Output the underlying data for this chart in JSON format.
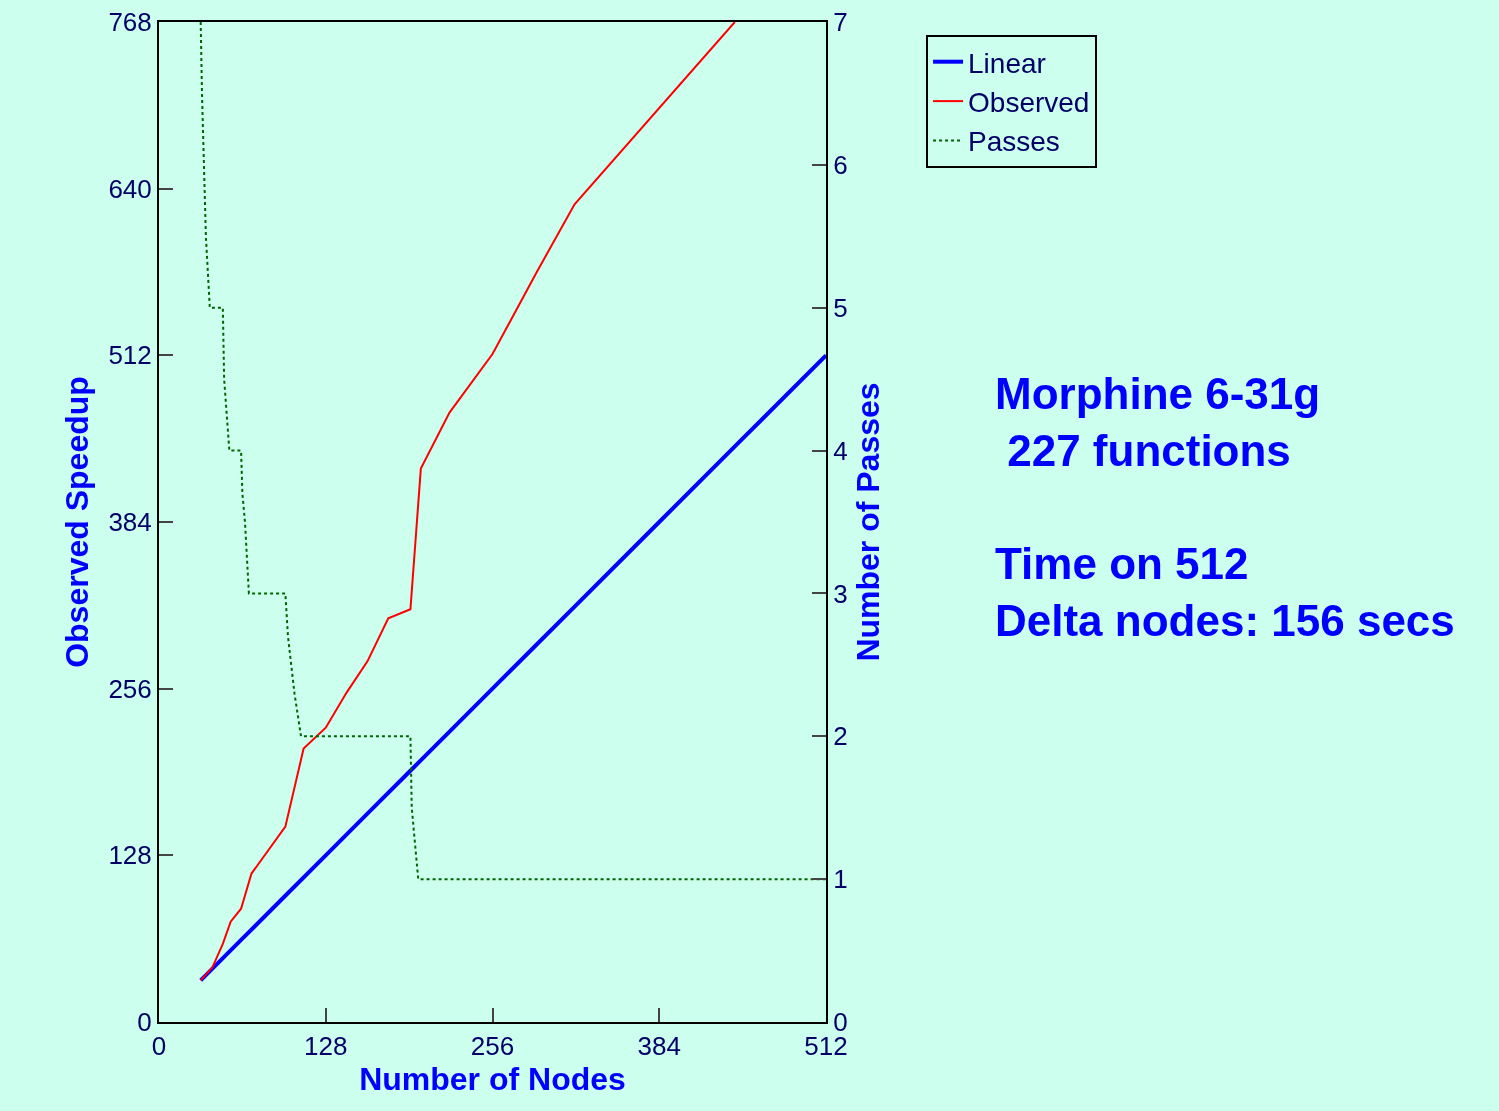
{
  "chart_data": {
    "type": "line",
    "xlabel": "Number of Nodes",
    "ylabel": "Observed Speedup",
    "y2label": "Number of Passes",
    "xlim": [
      0,
      512
    ],
    "xticks": [
      0,
      128,
      256,
      384,
      512
    ],
    "ylim": [
      0,
      768
    ],
    "yticks": [
      0,
      128,
      256,
      384,
      512,
      640,
      768
    ],
    "y2lim": [
      0,
      7
    ],
    "y2ticks": [
      0,
      1,
      2,
      3,
      4,
      5,
      6,
      7
    ],
    "grid": false,
    "legend": "top right",
    "marker": "none",
    "series": [
      {
        "name": "Linear",
        "color": "#0000ff",
        "line_style": "solid",
        "x": [
          32,
          64,
          96,
          128,
          160,
          192,
          224,
          256,
          288,
          320,
          384,
          448,
          512
        ],
        "values": [
          32,
          64,
          96,
          128,
          160,
          192,
          224,
          256,
          288,
          320,
          384,
          448,
          512
        ]
      },
      {
        "name": "Observed",
        "color": "#ff0000",
        "line_style": "solid",
        "x": [
          32,
          41,
          49,
          55,
          63,
          71,
          97,
          111,
          128,
          144,
          160,
          176,
          193,
          201,
          223,
          256,
          290,
          319,
          442
        ],
        "values": [
          32,
          42,
          60,
          77,
          87,
          114,
          150,
          210,
          226,
          253,
          277,
          310,
          317,
          425,
          468,
          513,
          576,
          628,
          768
        ]
      },
      {
        "name": "Passes",
        "color": "#006400",
        "line_style": "dotted",
        "axis": "y2",
        "x": [
          32,
          33,
          36,
          39,
          49,
          50,
          54,
          63,
          64,
          66,
          69,
          97,
          99,
          104,
          109,
          193,
          194,
          199,
          512
        ],
        "values": [
          7,
          6.5,
          5.5,
          5,
          5,
          4.5,
          4,
          4,
          3.7,
          3.5,
          3,
          3,
          2.7,
          2.3,
          2,
          2,
          1.5,
          1,
          1
        ]
      }
    ],
    "annotations": [
      "Morphine 6-31g\n 227 functions",
      "Time on 512\nDelta nodes: 156 secs"
    ]
  }
}
